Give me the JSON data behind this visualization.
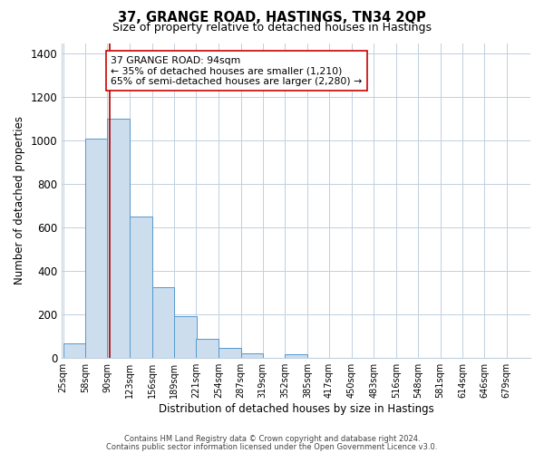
{
  "title": "37, GRANGE ROAD, HASTINGS, TN34 2QP",
  "subtitle": "Size of property relative to detached houses in Hastings",
  "xlabel": "Distribution of detached houses by size in Hastings",
  "ylabel": "Number of detached properties",
  "footer_line1": "Contains HM Land Registry data © Crown copyright and database right 2024.",
  "footer_line2": "Contains public sector information licensed under the Open Government Licence v3.0.",
  "bin_labels": [
    "25sqm",
    "58sqm",
    "90sqm",
    "123sqm",
    "156sqm",
    "189sqm",
    "221sqm",
    "254sqm",
    "287sqm",
    "319sqm",
    "352sqm",
    "385sqm",
    "417sqm",
    "450sqm",
    "483sqm",
    "516sqm",
    "548sqm",
    "581sqm",
    "614sqm",
    "646sqm",
    "679sqm"
  ],
  "bar_values": [
    65,
    1010,
    1100,
    650,
    325,
    190,
    85,
    45,
    20,
    0,
    15,
    0,
    0,
    0,
    0,
    0,
    0,
    0,
    0,
    0,
    0
  ],
  "bar_color": "#ccdded",
  "bar_edgecolor": "#5599cc",
  "bar_linewidth": 0.7,
  "vline_x": 94,
  "vline_color": "#aa0000",
  "vline_linewidth": 1.2,
  "ylim": [
    0,
    1450
  ],
  "yticks": [
    0,
    200,
    400,
    600,
    800,
    1000,
    1200,
    1400
  ],
  "annotation_title": "37 GRANGE ROAD: 94sqm",
  "annotation_line1": "← 35% of detached houses are smaller (1,210)",
  "annotation_line2": "65% of semi-detached houses are larger (2,280) →",
  "bg_color": "#ffffff",
  "grid_color": "#c0d0e0",
  "bin_width": 33
}
